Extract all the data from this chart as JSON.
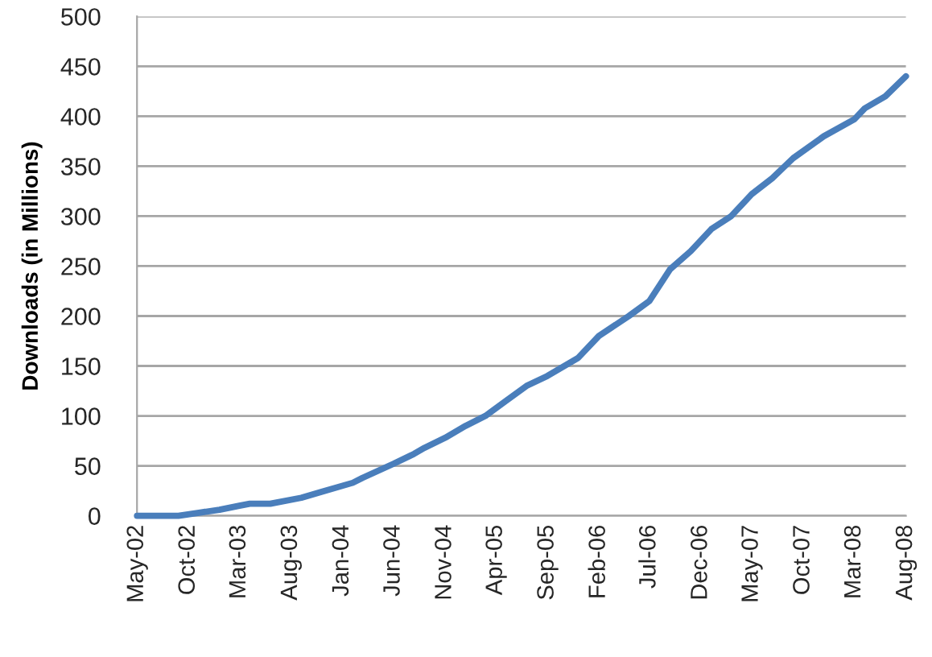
{
  "chart_data": {
    "type": "line",
    "ylabel": "Downloads (in Millions)",
    "x": [
      "2002-05",
      "2002-09",
      "2002-11",
      "2003-01",
      "2003-03",
      "2003-04",
      "2003-06",
      "2003-09",
      "2003-11",
      "2004-02",
      "2004-03",
      "2004-06",
      "2004-08",
      "2004-09",
      "2004-11",
      "2005-01",
      "2005-03",
      "2005-05",
      "2005-07",
      "2005-09",
      "2005-12",
      "2006-02",
      "2006-05",
      "2006-07",
      "2006-09",
      "2006-11",
      "2007-01",
      "2007-03",
      "2007-05",
      "2007-07",
      "2007-09",
      "2007-12",
      "2008-03",
      "2008-04",
      "2008-06",
      "2008-08"
    ],
    "series": [
      {
        "color": "#4a7ebb",
        "values": [
          0,
          0,
          3,
          6,
          10,
          12,
          12,
          18,
          24,
          33,
          38,
          52,
          62,
          68,
          78,
          90,
          100,
          115,
          130,
          140,
          158,
          180,
          200,
          215,
          247,
          265,
          287,
          300,
          322,
          338,
          358,
          380,
          397,
          408,
          420,
          440
        ]
      }
    ],
    "xlim": [
      "2002-05",
      "2008-08"
    ],
    "xticks": [
      {
        "value": "2002-05",
        "label": "May-02"
      },
      {
        "value": "2002-10",
        "label": "Oct-02"
      },
      {
        "value": "2003-03",
        "label": "Mar-03"
      },
      {
        "value": "2003-08",
        "label": "Aug-03"
      },
      {
        "value": "2004-01",
        "label": "Jan-04"
      },
      {
        "value": "2004-06",
        "label": "Jun-04"
      },
      {
        "value": "2004-11",
        "label": "Nov-04"
      },
      {
        "value": "2005-04",
        "label": "Apr-05"
      },
      {
        "value": "2005-09",
        "label": "Sep-05"
      },
      {
        "value": "2006-02",
        "label": "Feb-06"
      },
      {
        "value": "2006-07",
        "label": "Jul-06"
      },
      {
        "value": "2006-12",
        "label": "Dec-06"
      },
      {
        "value": "2007-05",
        "label": "May-07"
      },
      {
        "value": "2007-10",
        "label": "Oct-07"
      },
      {
        "value": "2008-03",
        "label": "Mar-08"
      },
      {
        "value": "2008-08",
        "label": "Aug-08"
      }
    ],
    "ylim": [
      0,
      500
    ],
    "yticks": [
      0,
      50,
      100,
      150,
      200,
      250,
      300,
      350,
      400,
      450,
      500
    ],
    "grid": "y",
    "line_style": "solid"
  }
}
